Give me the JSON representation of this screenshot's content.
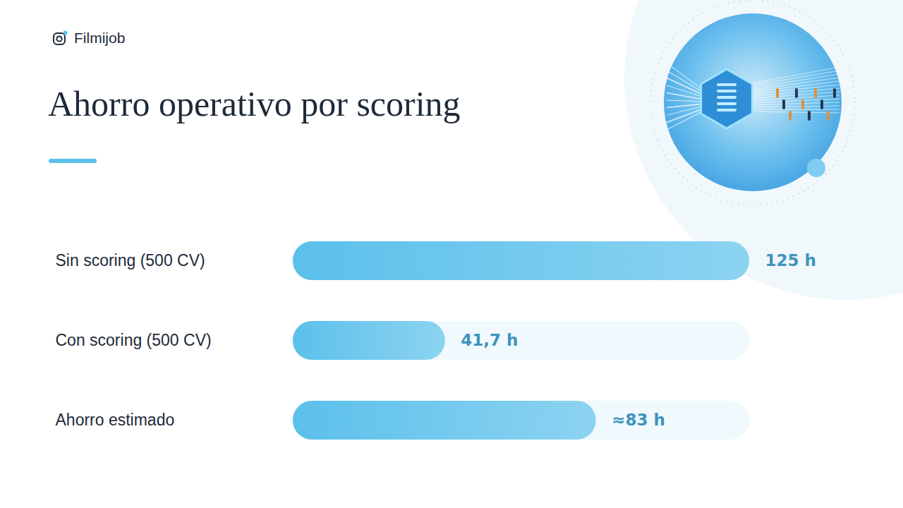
{
  "header": {
    "brand": "Filmijob"
  },
  "chart_data": {
    "type": "bar",
    "title": "Ahorro operativo por scoring",
    "orientation": "horizontal",
    "categories": [
      "Sin scoring (500 CV)",
      "Con scoring (500 CV)",
      "Ahorro estimado"
    ],
    "values": [
      125,
      41.7,
      83
    ],
    "value_labels": [
      "125 h",
      "41,7 h",
      "≈83 h"
    ],
    "color": "#5bc0eb",
    "xlim": [
      0,
      125
    ],
    "data_labels": true,
    "tick_labels": "y",
    "grid": false
  }
}
